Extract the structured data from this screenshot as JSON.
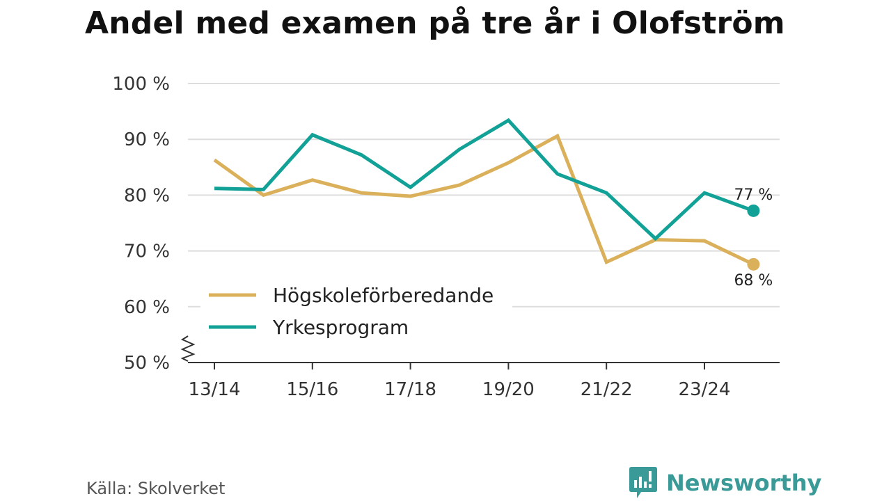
{
  "title": "Andel med examen på tre år i Olofström",
  "source": "Källa: Skolverket",
  "brand": "Newsworthy",
  "chart_data": {
    "type": "line",
    "title": "Andel med examen på tre år i Olofström",
    "x": [
      "13/14",
      "14/15",
      "15/16",
      "16/17",
      "17/18",
      "18/19",
      "19/20",
      "20/21",
      "21/22",
      "22/23",
      "23/24",
      "24/25"
    ],
    "x_tick_labels": [
      "13/14",
      "",
      "15/16",
      "",
      "17/18",
      "",
      "19/20",
      "",
      "21/22",
      "",
      "23/24",
      ""
    ],
    "ylim": [
      50,
      100
    ],
    "y_ticks": [
      50,
      60,
      70,
      80,
      90,
      100
    ],
    "y_tick_labels": [
      "50 %",
      "60 %",
      "70 %",
      "80 %",
      "90 %",
      "100 %"
    ],
    "grid": true,
    "y_axis_break": true,
    "legend_position": "lower-left",
    "series": [
      {
        "name": "Högskoleförberedande",
        "color": "#dbb05a",
        "values": [
          86.3,
          80.0,
          82.7,
          80.4,
          79.8,
          81.8,
          85.8,
          90.6,
          68.0,
          72.0,
          71.8,
          67.6
        ],
        "end_label": "68 %"
      },
      {
        "name": "Yrkesprogram",
        "color": "#12a196",
        "values": [
          81.2,
          81.0,
          90.8,
          87.2,
          81.4,
          88.2,
          93.4,
          83.8,
          80.4,
          72.2,
          80.4,
          77.2
        ],
        "end_label": "77 %"
      }
    ]
  }
}
